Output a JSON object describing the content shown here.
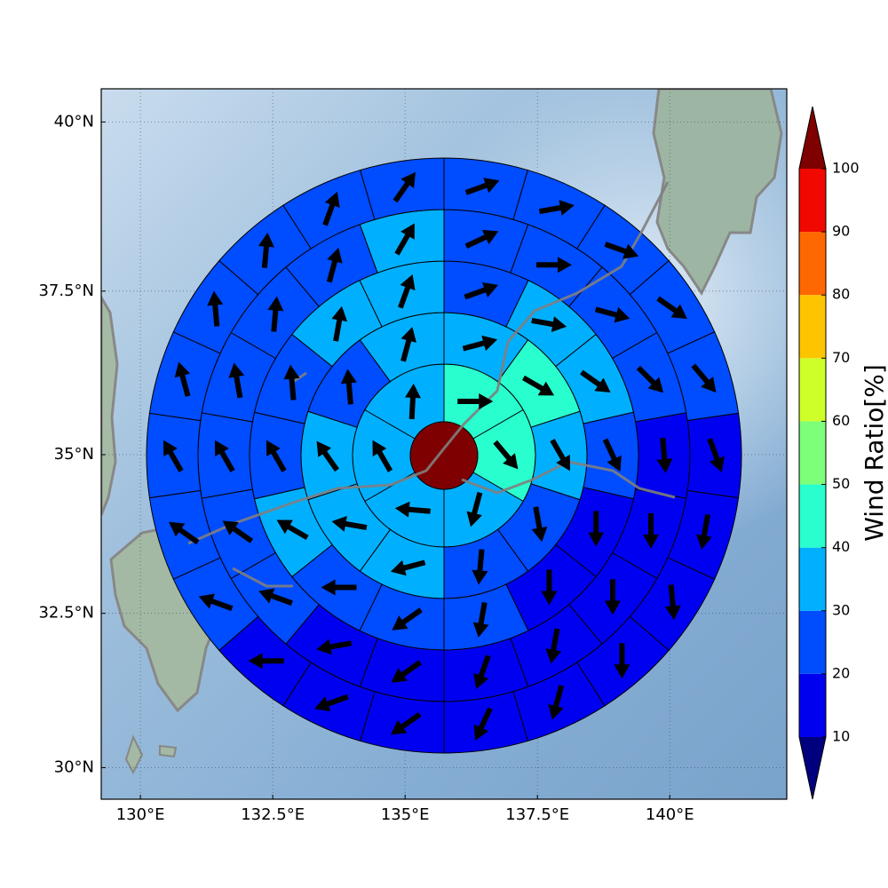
{
  "chart_data": {
    "type": "polar-wind-map",
    "projection": "mercator",
    "xlim": [
      129.26,
      142.21
    ],
    "ylim": [
      29.48,
      40.48
    ],
    "xticks": [
      {
        "value": 130,
        "label": "130°E"
      },
      {
        "value": 132.5,
        "label": "132.5°E"
      },
      {
        "value": 135,
        "label": "135°E"
      },
      {
        "value": 137.5,
        "label": "137.5°E"
      },
      {
        "value": 140,
        "label": "140°E"
      }
    ],
    "yticks": [
      {
        "value": 30,
        "label": "30°N"
      },
      {
        "value": 32.5,
        "label": "32.5°N"
      },
      {
        "value": 35,
        "label": "35°N"
      },
      {
        "value": 37.5,
        "label": "37.5°N"
      },
      {
        "value": 40,
        "label": "40°N"
      }
    ],
    "grid": true,
    "center_value": 100,
    "rings": [
      {
        "values": [
          45,
          45,
          35,
          35,
          35,
          35
        ],
        "directions": [
          90,
          140,
          195,
          275,
          330,
          3
        ]
      },
      {
        "values": [
          35,
          45,
          35,
          25,
          25,
          35,
          35,
          35,
          25,
          35
        ],
        "directions": [
          75,
          120,
          150,
          170,
          185,
          255,
          280,
          325,
          355,
          15
        ]
      },
      {
        "values": [
          25,
          35,
          35,
          25,
          15,
          15,
          25,
          25,
          25,
          35,
          25,
          25,
          35,
          35
        ],
        "directions": [
          70,
          100,
          125,
          155,
          180,
          180,
          190,
          235,
          270,
          300,
          330,
          355,
          10,
          20
        ]
      },
      {
        "values": [
          25,
          25,
          25,
          25,
          15,
          15,
          15,
          15,
          15,
          15,
          15,
          25,
          25,
          25,
          25,
          25,
          25,
          35
        ],
        "directions": [
          65,
          90,
          105,
          135,
          175,
          180,
          180,
          190,
          200,
          235,
          260,
          290,
          305,
          330,
          350,
          5,
          15,
          30
        ]
      },
      {
        "values": [
          25,
          25,
          25,
          25,
          25,
          15,
          15,
          15,
          15,
          15,
          15,
          15,
          15,
          15,
          25,
          25,
          25,
          25,
          25,
          25,
          25,
          25
        ],
        "directions": [
          70,
          80,
          110,
          125,
          140,
          160,
          190,
          175,
          180,
          195,
          205,
          235,
          250,
          270,
          290,
          305,
          330,
          345,
          355,
          5,
          20,
          35
        ]
      }
    ],
    "colorbar": {
      "label": "Wind Ratio[%]",
      "ticks": [
        10,
        20,
        30,
        40,
        50,
        60,
        70,
        80,
        90,
        100
      ],
      "colors": [
        "#0000f1",
        "#004cff",
        "#00b0ff",
        "#29ffce",
        "#7dff7a",
        "#ceff29",
        "#ffc400",
        "#ff6800",
        "#f10800"
      ],
      "under_color": "#00007f",
      "over_color": "#7f0000"
    }
  }
}
